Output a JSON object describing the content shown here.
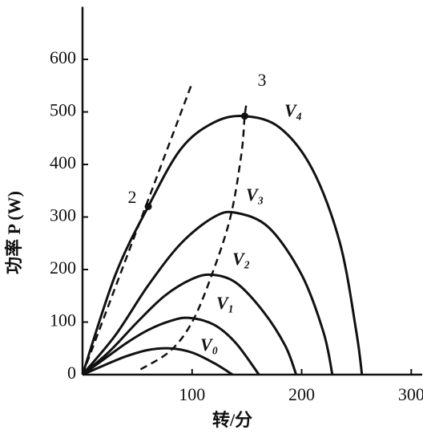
{
  "chart_data": {
    "type": "line",
    "x_label": "转/分",
    "y_label": "功率 P (W)",
    "xlim": [
      0,
      310
    ],
    "ylim": [
      0,
      700
    ],
    "xticks": [
      100,
      200,
      300
    ],
    "yticks": [
      0,
      100,
      200,
      300,
      400,
      500,
      600
    ],
    "color": "#111111",
    "series": [
      {
        "name": "V₀",
        "x": [
          0,
          20,
          40,
          60,
          80,
          100,
          120,
          137
        ],
        "values": [
          0,
          18,
          35,
          47,
          50,
          42,
          22,
          0
        ]
      },
      {
        "name": "V₁",
        "x": [
          0,
          20,
          40,
          60,
          80,
          97,
          120,
          140,
          161
        ],
        "values": [
          0,
          30,
          60,
          85,
          102,
          108,
          95,
          60,
          0
        ]
      },
      {
        "name": "V₂",
        "x": [
          0,
          25,
          50,
          75,
          100,
          118,
          140,
          165,
          185,
          195
        ],
        "values": [
          0,
          45,
          100,
          150,
          182,
          190,
          175,
          120,
          55,
          0
        ]
      },
      {
        "name": "V₃",
        "x": [
          0,
          30,
          60,
          90,
          120,
          140,
          170,
          200,
          220,
          228
        ],
        "values": [
          0,
          75,
          170,
          250,
          300,
          308,
          280,
          190,
          80,
          0
        ]
      },
      {
        "name": "V₄",
        "x": [
          0,
          30,
          60,
          90,
          120,
          148,
          180,
          210,
          235,
          250,
          255
        ],
        "values": [
          0,
          190,
          320,
          430,
          480,
          492,
          470,
          390,
          250,
          80,
          0
        ]
      }
    ],
    "dashed": [
      {
        "x": [
          0,
          100
        ],
        "values": [
          0,
          555
        ]
      },
      {
        "x": [
          53,
          80,
          100,
          118,
          135,
          145,
          148,
          150
        ],
        "values": [
          10,
          45,
          100,
          190,
          300,
          420,
          492,
          520
        ]
      }
    ],
    "annotations": [
      "2",
      "3"
    ]
  }
}
